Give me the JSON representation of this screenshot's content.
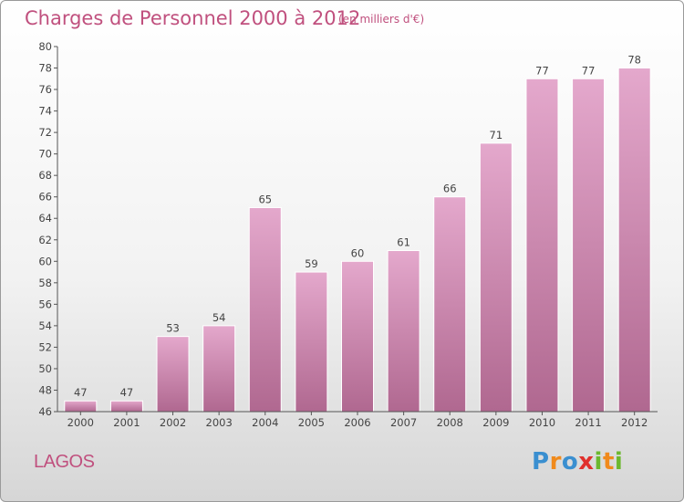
{
  "chart_data": {
    "type": "bar",
    "title": "Charges de Personnel 2000 à 2012",
    "subtitle": "(en milliers d'€)",
    "categories": [
      "2000",
      "2001",
      "2002",
      "2003",
      "2004",
      "2005",
      "2006",
      "2007",
      "2008",
      "2009",
      "2010",
      "2011",
      "2012"
    ],
    "values": [
      47,
      47,
      53,
      54,
      65,
      59,
      60,
      61,
      66,
      71,
      77,
      77,
      78
    ],
    "data_labels": [
      "47",
      "47",
      "53",
      "54",
      "65",
      "59",
      "60",
      "61",
      "66",
      "71",
      "77",
      "77",
      "78"
    ],
    "ylim": [
      46,
      80
    ],
    "yticks": [
      46,
      48,
      50,
      52,
      54,
      56,
      58,
      60,
      62,
      64,
      66,
      68,
      70,
      72,
      74,
      76,
      78,
      80
    ],
    "grid": false,
    "colors": {
      "bar_top": "#e4a8cc",
      "bar_bottom": "#b06890",
      "title": "#c0507e"
    }
  },
  "place_name": "LAGOS",
  "logo": {
    "letters": [
      "P",
      "r",
      "o",
      "x",
      "i",
      "t",
      "i"
    ],
    "colors": [
      "#3a8fd0",
      "#f08a1c",
      "#3a8fd0",
      "#e0302c",
      "#6cb82e",
      "#f08a1c",
      "#6cb82e"
    ]
  }
}
